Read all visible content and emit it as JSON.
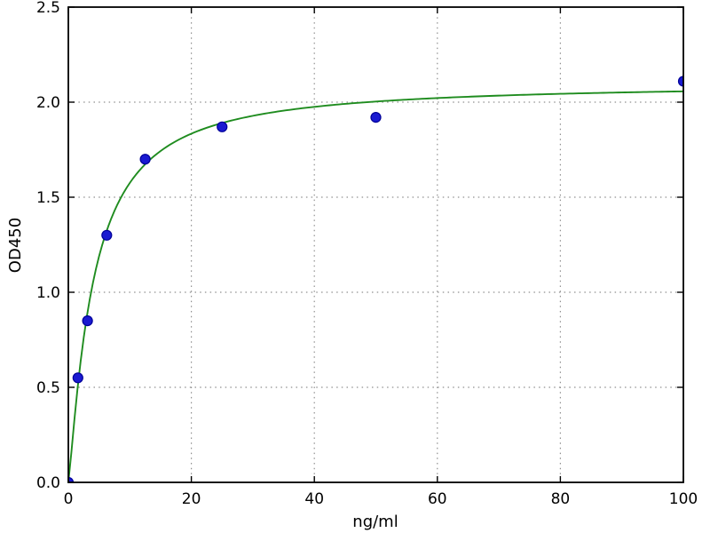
{
  "chart_data": {
    "type": "scatter",
    "title": "",
    "xlabel": "ng/ml",
    "ylabel": "OD450",
    "xlim": [
      0,
      100
    ],
    "ylim": [
      0,
      2.5
    ],
    "xticks": [
      0,
      20,
      40,
      60,
      80,
      100
    ],
    "yticks": [
      0,
      0.5,
      1,
      1.5,
      2,
      2.5
    ],
    "grid": true,
    "grid_style": "dotted",
    "legend": null,
    "series": [
      {
        "name": "standard-points",
        "type": "scatter",
        "marker": "circle",
        "x": [
          0,
          1.56,
          3.12,
          6.25,
          12.5,
          25,
          50,
          100
        ],
        "y": [
          0.0,
          0.55,
          0.85,
          1.3,
          1.7,
          1.87,
          1.92,
          2.11
        ]
      },
      {
        "name": "fit-curve",
        "type": "line",
        "model": "y = d * x^b / (c^b + x^b)",
        "params": {
          "d": 2.1,
          "b": 1.2,
          "c": 4.0
        },
        "x_range": [
          0,
          100
        ],
        "plateau": 2.06
      }
    ],
    "colors": {
      "curve": "#1f8c1f",
      "marker_fill": "#1a1ad1",
      "marker_edge": "#000099",
      "grid": "#8f8f8f",
      "axis": "#000000",
      "background": "#ffffff"
    }
  }
}
